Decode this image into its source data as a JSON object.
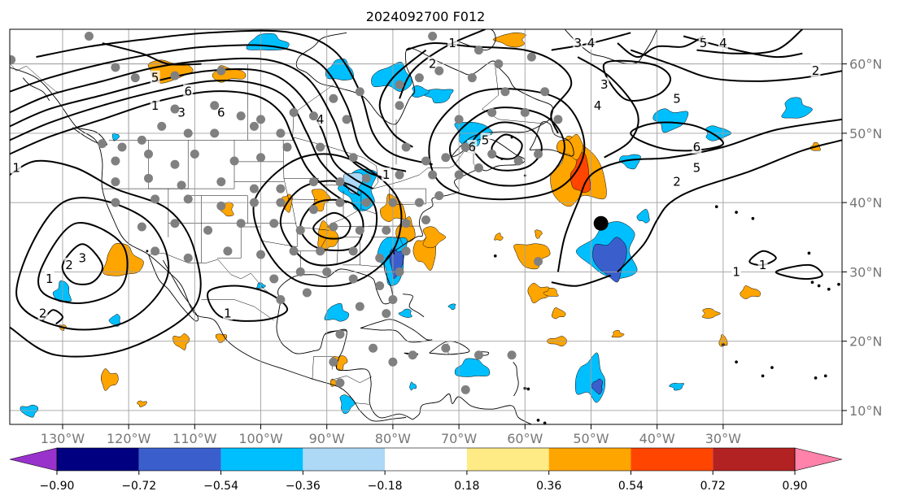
{
  "title": "2024092700 F012",
  "map": {
    "lon_range": [
      -138,
      -12
    ],
    "lat_range": [
      8,
      65
    ],
    "lon_ticks": [
      "130°W",
      "120°W",
      "110°W",
      "100°W",
      "90°W",
      "80°W",
      "70°W",
      "60°W",
      "50°W",
      "40°W",
      "30°W"
    ],
    "lat_ticks": [
      "60°N",
      "50°N",
      "40°N",
      "30°N",
      "20°N",
      "10°N"
    ],
    "grid": true,
    "marker": {
      "lon": -48.5,
      "lat": 37.0,
      "label": ""
    }
  },
  "contour_labels": [
    {
      "text": "1",
      "lon": -116,
      "lat": 54
    },
    {
      "text": "5",
      "lon": -116,
      "lat": 58
    },
    {
      "text": "6",
      "lon": -111,
      "lat": 56
    },
    {
      "text": "3",
      "lon": -112,
      "lat": 53
    },
    {
      "text": "6",
      "lon": -106,
      "lat": 53
    },
    {
      "text": "1",
      "lon": -137,
      "lat": 45
    },
    {
      "text": "3",
      "lon": -127,
      "lat": 32
    },
    {
      "text": "2",
      "lon": -129,
      "lat": 31
    },
    {
      "text": "1",
      "lon": -132,
      "lat": 29
    },
    {
      "text": "2",
      "lon": -133,
      "lat": 24
    },
    {
      "text": "1",
      "lon": -105,
      "lat": 24
    },
    {
      "text": "4",
      "lon": -91,
      "lat": 52
    },
    {
      "text": "1",
      "lon": -81,
      "lat": 44
    },
    {
      "text": "6",
      "lon": -68,
      "lat": 48
    },
    {
      "text": "5",
      "lon": -66,
      "lat": 49
    },
    {
      "text": "1",
      "lon": -71,
      "lat": 63
    },
    {
      "text": "2",
      "lon": -74,
      "lat": 60
    },
    {
      "text": "3",
      "lon": -52,
      "lat": 63
    },
    {
      "text": "3",
      "lon": -48,
      "lat": 57
    },
    {
      "text": "4",
      "lon": -49,
      "lat": 54
    },
    {
      "text": "5",
      "lon": -37,
      "lat": 55
    },
    {
      "text": "6",
      "lon": -34,
      "lat": 48
    },
    {
      "text": "5",
      "lon": -34,
      "lat": 45
    },
    {
      "text": "2",
      "lon": -37,
      "lat": 43
    },
    {
      "text": "4",
      "lon": -30,
      "lat": 63
    },
    {
      "text": "5",
      "lon": -33,
      "lat": 63
    },
    {
      "text": "2",
      "lon": -16,
      "lat": 59
    },
    {
      "text": "1",
      "lon": -24,
      "lat": 31
    },
    {
      "text": "1",
      "lon": -28,
      "lat": 30
    },
    {
      "text": "4",
      "lon": -50,
      "lat": 63
    }
  ],
  "colorbar": {
    "ticks": [
      "−0.90",
      "−0.72",
      "−0.54",
      "−0.36",
      "−0.18",
      "0.18",
      "0.36",
      "0.54",
      "0.72",
      "0.90"
    ],
    "bin_colors": [
      "#9932cc",
      "#000080",
      "#3a5fcd",
      "#00bfff",
      "#add8f6",
      "#ffffff",
      "#ffeb85",
      "#ffa500",
      "#ff4500",
      "#b22222",
      "#ff82ab"
    ]
  },
  "shading": {
    "colors": {
      "orange": "#ffa500",
      "red": "#ff4500",
      "blue": "#00bfff",
      "navy": "#3a5fcd",
      "light": "#add8f6"
    }
  },
  "stations": {
    "color": "#808080",
    "points": [
      [
        -137.8,
        60.6
      ],
      [
        -126,
        64
      ],
      [
        -122,
        59.5
      ],
      [
        -119,
        58
      ],
      [
        -113,
        58.3
      ],
      [
        -106,
        59
      ],
      [
        -113,
        53.5
      ],
      [
        -107,
        54
      ],
      [
        -103,
        52.5
      ],
      [
        -100,
        52
      ],
      [
        -95,
        53
      ],
      [
        -124,
        48.5
      ],
      [
        -121,
        48
      ],
      [
        -118,
        49
      ],
      [
        -115,
        51
      ],
      [
        -111,
        50
      ],
      [
        -107,
        50
      ],
      [
        -101,
        51
      ],
      [
        -97,
        50
      ],
      [
        -92,
        52.5
      ],
      [
        -87,
        52
      ],
      [
        -122,
        46
      ],
      [
        -117,
        47
      ],
      [
        -113,
        45.5
      ],
      [
        -110,
        47
      ],
      [
        -104,
        46
      ],
      [
        -100,
        46.5
      ],
      [
        -96,
        48
      ],
      [
        -91,
        48
      ],
      [
        -86,
        46.5
      ],
      [
        -122,
        43
      ],
      [
        -117,
        43.5
      ],
      [
        -112,
        42.5
      ],
      [
        -106,
        43
      ],
      [
        -101,
        42
      ],
      [
        -97,
        42
      ],
      [
        -92,
        43
      ],
      [
        -88,
        43
      ],
      [
        -84,
        43.5
      ],
      [
        -79,
        44
      ],
      [
        -122,
        40
      ],
      [
        -116,
        40.5
      ],
      [
        -111,
        40.5
      ],
      [
        -106,
        39.5
      ],
      [
        -101,
        40
      ],
      [
        -97,
        40
      ],
      [
        -92,
        39
      ],
      [
        -88,
        40
      ],
      [
        -84,
        40
      ],
      [
        -80,
        40
      ],
      [
        -76,
        40
      ],
      [
        -73,
        41
      ],
      [
        -118,
        36.5
      ],
      [
        -113,
        37
      ],
      [
        -108,
        36
      ],
      [
        -103,
        37
      ],
      [
        -98,
        37
      ],
      [
        -94,
        36
      ],
      [
        -89,
        36.5
      ],
      [
        -85,
        36
      ],
      [
        -81,
        36
      ],
      [
        -78,
        37
      ],
      [
        -75,
        37.5
      ],
      [
        -116,
        33
      ],
      [
        -111,
        32
      ],
      [
        -105,
        33
      ],
      [
        -100,
        32.5
      ],
      [
        -95,
        33
      ],
      [
        -91,
        33
      ],
      [
        -86,
        33
      ],
      [
        -82,
        32
      ],
      [
        -78,
        33
      ],
      [
        -98,
        29
      ],
      [
        -94,
        30
      ],
      [
        -90,
        30
      ],
      [
        -86,
        29
      ],
      [
        -82,
        28
      ],
      [
        -80,
        26
      ],
      [
        -97,
        26
      ],
      [
        -93,
        27
      ],
      [
        -85,
        25
      ],
      [
        -81,
        24
      ],
      [
        -78,
        48
      ],
      [
        -75,
        46
      ],
      [
        -72,
        46.5
      ],
      [
        -69,
        48
      ],
      [
        -65,
        47
      ],
      [
        -61,
        46
      ],
      [
        -58,
        47
      ],
      [
        -67,
        45
      ],
      [
        -70,
        44
      ],
      [
        -74,
        44
      ],
      [
        -79,
        57
      ],
      [
        -76,
        58
      ],
      [
        -73,
        59
      ],
      [
        -68,
        58
      ],
      [
        -64,
        60
      ],
      [
        -59,
        61
      ],
      [
        -55,
        52
      ],
      [
        -60,
        53
      ],
      [
        -65,
        53
      ],
      [
        -70,
        52
      ],
      [
        -74,
        64
      ],
      [
        -67,
        62
      ],
      [
        -63,
        56
      ],
      [
        -57,
        56
      ],
      [
        -79,
        54
      ],
      [
        -85,
        56
      ],
      [
        -89,
        55
      ],
      [
        -88,
        21
      ],
      [
        -83,
        19
      ],
      [
        -77,
        18
      ],
      [
        -72,
        19
      ],
      [
        -67,
        18
      ],
      [
        -62,
        18
      ],
      [
        -69,
        13
      ],
      [
        -80,
        17
      ],
      [
        -88,
        14
      ],
      [
        -79,
        30
      ],
      [
        -89,
        17
      ],
      [
        -58,
        31.5
      ]
    ]
  }
}
